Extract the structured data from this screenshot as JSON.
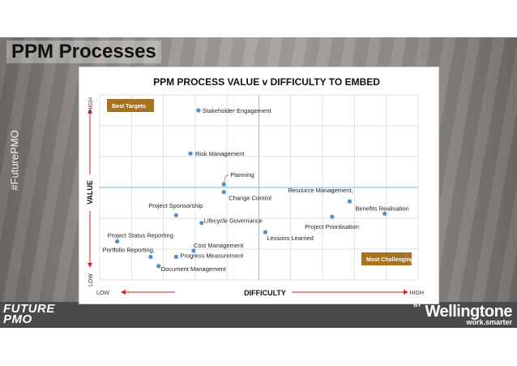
{
  "slide": {
    "title": "PPM Processes",
    "hashtag": "#FuturePMO",
    "brand_left_line1": "FUTURE",
    "brand_left_line2": "PMO",
    "brand_right_by": "BY",
    "brand_right_name": "Wellingtone",
    "brand_right_tagline": "work.smarter"
  },
  "colors": {
    "point": "#4a90d0",
    "callout_box": "#a8731f",
    "axis_arrow": "#cc2222",
    "grid": "#d5d5d5",
    "crosshair": "#9ac3e6"
  },
  "chart_data": {
    "type": "scatter",
    "title": "PPM PROCESS VALUE v DIFFICULTY TO EMBED",
    "xlabel": "DIFFICULTY",
    "ylabel": "VALUE",
    "x_low_label": "LOW",
    "x_high_label": "HIGH",
    "y_low_label": "LOW",
    "y_high_label": "HIGH",
    "xlim": [
      0,
      10
    ],
    "ylim": [
      0,
      6
    ],
    "grid": true,
    "callouts": [
      {
        "text": "Best Targets",
        "position": "top-left"
      },
      {
        "text": "Most Challenging",
        "position": "bottom-right"
      }
    ],
    "points": [
      {
        "label": "Stakeholder Engagement",
        "x": 3.1,
        "y": 5.5
      },
      {
        "label": "Risk Management",
        "x": 2.85,
        "y": 4.1
      },
      {
        "label": "Planning",
        "x": 3.9,
        "y": 3.1
      },
      {
        "label": "Change Control",
        "x": 3.9,
        "y": 2.85
      },
      {
        "label": "Resource Management,",
        "x": 7.85,
        "y": 2.55
      },
      {
        "label": "Benefits Realisation",
        "x": 8.95,
        "y": 2.15
      },
      {
        "label": "Project Prioritisation",
        "x": 7.3,
        "y": 2.05
      },
      {
        "label": "Project Sponsorship",
        "x": 2.4,
        "y": 2.1
      },
      {
        "label": "Lifecycle Governance",
        "x": 3.2,
        "y": 1.85
      },
      {
        "label": "Lessons Learned",
        "x": 5.2,
        "y": 1.55
      },
      {
        "label": "Project Status Reporting",
        "x": 0.55,
        "y": 1.25
      },
      {
        "label": "Cost Management",
        "x": 2.95,
        "y": 0.95
      },
      {
        "label": "Portfolio Reporting,",
        "x": 1.6,
        "y": 0.75
      },
      {
        "label": "Progress Measurement",
        "x": 2.4,
        "y": 0.75
      },
      {
        "label": "Document Management",
        "x": 1.85,
        "y": 0.45
      }
    ]
  }
}
